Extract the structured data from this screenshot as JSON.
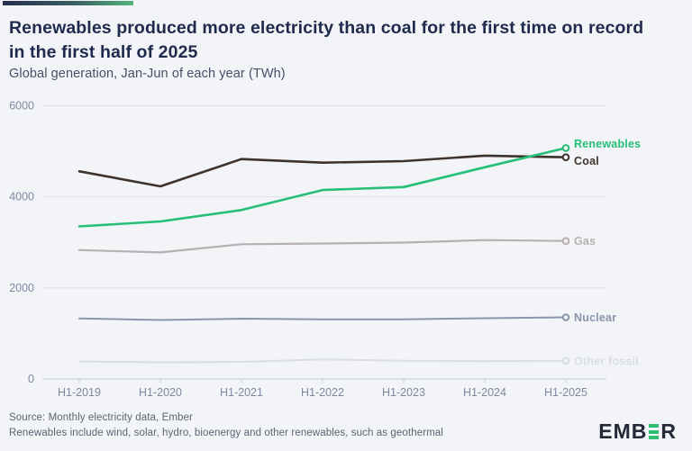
{
  "header": {
    "title": "Renewables produced more electricity than coal for the first time on record\nin the first half of 2025",
    "subtitle": "Global generation, Jan-Jun of each year (TWh)"
  },
  "chart_data": {
    "type": "line",
    "title": "Renewables produced more electricity than coal for the first time on record in the first half of 2025",
    "subtitle": "Global generation, Jan-Jun of each year (TWh)",
    "xlabel": "",
    "ylabel": "TWh",
    "categories": [
      "H1-2019",
      "H1-2020",
      "H1-2021",
      "H1-2022",
      "H1-2023",
      "H1-2024",
      "H1-2025"
    ],
    "yticks": [
      0,
      2000,
      4000,
      6000
    ],
    "ylim": [
      0,
      6000
    ],
    "grid": true,
    "legend_position": "right-end-labels",
    "series": [
      {
        "name": "Renewables",
        "color": "#25bf77",
        "values": [
          3350,
          3460,
          3710,
          4150,
          4215,
          4650,
          5072
        ]
      },
      {
        "name": "Coal",
        "color": "#3e322d",
        "values": [
          4560,
          4230,
          4830,
          4750,
          4785,
          4905,
          4870
        ]
      },
      {
        "name": "Gas",
        "color": "#b7b0b0",
        "values": [
          2830,
          2780,
          2960,
          2975,
          2995,
          3050,
          3030
        ]
      },
      {
        "name": "Nuclear",
        "color": "#8994ad",
        "values": [
          1330,
          1295,
          1325,
          1310,
          1310,
          1335,
          1355
        ]
      },
      {
        "name": "Other fossil",
        "color": "#d9dde4",
        "values": [
          385,
          365,
          375,
          430,
          400,
          390,
          398
        ]
      }
    ]
  },
  "footer": {
    "source": "Source: Monthly electricity data, Ember",
    "note": "Renewables include wind, solar, hydro, bioenergy and other renewables, such as geothermal",
    "logo_left": "EMB",
    "logo_right": "R"
  },
  "colors": {
    "background": "#f2f4f7",
    "accent_gradient_start": "#272e4e",
    "accent_gradient_end": "#52b47b",
    "axis_label": "#7e89a1",
    "gridline": "#dde1e8",
    "axis_line": "#c5cbd7",
    "logo_green": "#2ebd72"
  }
}
